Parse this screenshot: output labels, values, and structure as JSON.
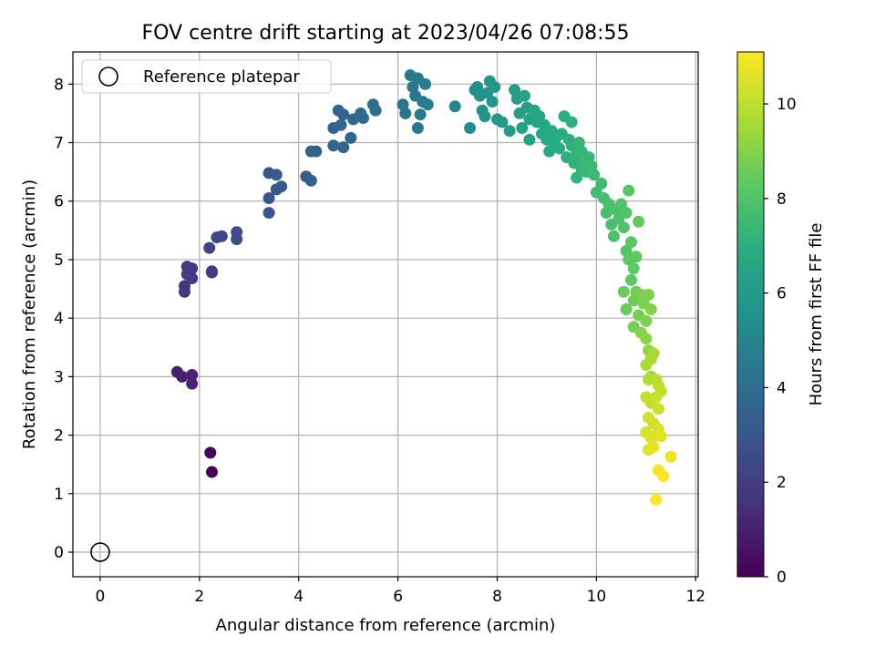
{
  "chart_data": {
    "type": "scatter",
    "title": "FOV centre drift starting at 2023/04/26 07:08:55",
    "xlabel": "Angular distance from reference (arcmin)",
    "ylabel": "Rotation from reference (arcmin)",
    "xlim": [
      -0.55,
      12.05
    ],
    "ylim": [
      -0.42,
      8.55
    ],
    "xticks": [
      0,
      2,
      4,
      6,
      8,
      10,
      12
    ],
    "yticks": [
      0,
      1,
      2,
      3,
      4,
      5,
      6,
      7,
      8
    ],
    "grid": true,
    "legend": {
      "position": "top-left",
      "entries": [
        "Reference platepar"
      ]
    },
    "reference_point": {
      "x": 0,
      "y": 0
    },
    "colorbar": {
      "label": "Hours from first FF file",
      "colormap": "viridis",
      "range": [
        0,
        11.1
      ],
      "ticks": [
        0,
        2,
        4,
        6,
        8,
        10
      ]
    },
    "points": [
      {
        "x": 2.25,
        "y": 1.37,
        "h": 0.1
      },
      {
        "x": 2.22,
        "y": 1.7,
        "h": 0.2
      },
      {
        "x": 1.55,
        "y": 3.08,
        "h": 0.9
      },
      {
        "x": 1.65,
        "y": 3.0,
        "h": 1.0
      },
      {
        "x": 1.85,
        "y": 3.03,
        "h": 1.1
      },
      {
        "x": 1.85,
        "y": 2.88,
        "h": 1.1
      },
      {
        "x": 1.7,
        "y": 4.45,
        "h": 1.8
      },
      {
        "x": 1.7,
        "y": 4.55,
        "h": 1.8
      },
      {
        "x": 1.75,
        "y": 4.75,
        "h": 1.9
      },
      {
        "x": 1.75,
        "y": 4.88,
        "h": 1.9
      },
      {
        "x": 1.85,
        "y": 4.85,
        "h": 1.9
      },
      {
        "x": 1.85,
        "y": 4.68,
        "h": 2.0
      },
      {
        "x": 2.25,
        "y": 4.78,
        "h": 2.0
      },
      {
        "x": 2.25,
        "y": 4.8,
        "h": 2.0
      },
      {
        "x": 2.2,
        "y": 5.2,
        "h": 2.2
      },
      {
        "x": 2.35,
        "y": 5.38,
        "h": 2.3
      },
      {
        "x": 2.45,
        "y": 5.4,
        "h": 2.3
      },
      {
        "x": 2.75,
        "y": 5.35,
        "h": 2.5
      },
      {
        "x": 2.75,
        "y": 5.47,
        "h": 2.5
      },
      {
        "x": 3.4,
        "y": 5.8,
        "h": 2.9
      },
      {
        "x": 3.4,
        "y": 6.05,
        "h": 2.9
      },
      {
        "x": 3.4,
        "y": 6.48,
        "h": 3.0
      },
      {
        "x": 3.55,
        "y": 6.45,
        "h": 3.1
      },
      {
        "x": 3.55,
        "y": 6.2,
        "h": 3.1
      },
      {
        "x": 3.65,
        "y": 6.25,
        "h": 3.1
      },
      {
        "x": 4.15,
        "y": 6.42,
        "h": 3.3
      },
      {
        "x": 4.25,
        "y": 6.35,
        "h": 3.4
      },
      {
        "x": 4.25,
        "y": 6.85,
        "h": 3.4
      },
      {
        "x": 4.35,
        "y": 6.85,
        "h": 3.4
      },
      {
        "x": 4.7,
        "y": 7.25,
        "h": 3.5
      },
      {
        "x": 4.7,
        "y": 6.95,
        "h": 3.5
      },
      {
        "x": 4.8,
        "y": 7.55,
        "h": 3.6
      },
      {
        "x": 4.85,
        "y": 7.3,
        "h": 3.6
      },
      {
        "x": 4.9,
        "y": 7.48,
        "h": 3.6
      },
      {
        "x": 4.9,
        "y": 6.92,
        "h": 3.6
      },
      {
        "x": 5.05,
        "y": 7.08,
        "h": 3.7
      },
      {
        "x": 5.1,
        "y": 7.4,
        "h": 3.7
      },
      {
        "x": 5.25,
        "y": 7.5,
        "h": 3.8
      },
      {
        "x": 5.3,
        "y": 7.42,
        "h": 3.8
      },
      {
        "x": 5.5,
        "y": 7.65,
        "h": 3.9
      },
      {
        "x": 5.55,
        "y": 7.55,
        "h": 3.9
      },
      {
        "x": 6.1,
        "y": 7.65,
        "h": 4.3
      },
      {
        "x": 6.15,
        "y": 7.5,
        "h": 4.3
      },
      {
        "x": 6.25,
        "y": 8.15,
        "h": 4.4
      },
      {
        "x": 6.3,
        "y": 7.95,
        "h": 4.4
      },
      {
        "x": 6.35,
        "y": 7.8,
        "h": 4.4
      },
      {
        "x": 6.4,
        "y": 8.1,
        "h": 4.5
      },
      {
        "x": 6.4,
        "y": 7.25,
        "h": 4.5
      },
      {
        "x": 6.45,
        "y": 7.48,
        "h": 4.5
      },
      {
        "x": 6.5,
        "y": 7.7,
        "h": 4.5
      },
      {
        "x": 6.55,
        "y": 8.0,
        "h": 4.6
      },
      {
        "x": 6.6,
        "y": 7.65,
        "h": 4.6
      },
      {
        "x": 7.15,
        "y": 7.62,
        "h": 5.1
      },
      {
        "x": 7.45,
        "y": 7.25,
        "h": 5.4
      },
      {
        "x": 7.55,
        "y": 7.9,
        "h": 5.5
      },
      {
        "x": 7.6,
        "y": 7.95,
        "h": 5.5
      },
      {
        "x": 7.65,
        "y": 7.8,
        "h": 5.6
      },
      {
        "x": 7.7,
        "y": 7.55,
        "h": 5.6
      },
      {
        "x": 7.75,
        "y": 7.45,
        "h": 5.7
      },
      {
        "x": 7.8,
        "y": 7.85,
        "h": 5.7
      },
      {
        "x": 7.85,
        "y": 8.05,
        "h": 5.8
      },
      {
        "x": 7.9,
        "y": 7.7,
        "h": 5.8
      },
      {
        "x": 7.95,
        "y": 7.95,
        "h": 5.9
      },
      {
        "x": 8.0,
        "y": 7.4,
        "h": 5.9
      },
      {
        "x": 8.1,
        "y": 7.35,
        "h": 6.0
      },
      {
        "x": 8.25,
        "y": 7.2,
        "h": 6.1
      },
      {
        "x": 8.35,
        "y": 7.9,
        "h": 6.2
      },
      {
        "x": 8.4,
        "y": 7.75,
        "h": 6.2
      },
      {
        "x": 8.45,
        "y": 7.5,
        "h": 6.2
      },
      {
        "x": 8.5,
        "y": 7.25,
        "h": 6.3
      },
      {
        "x": 8.55,
        "y": 7.8,
        "h": 6.3
      },
      {
        "x": 8.6,
        "y": 7.6,
        "h": 6.3
      },
      {
        "x": 8.65,
        "y": 7.4,
        "h": 6.4
      },
      {
        "x": 8.65,
        "y": 7.05,
        "h": 6.4
      },
      {
        "x": 8.75,
        "y": 7.55,
        "h": 6.5
      },
      {
        "x": 8.8,
        "y": 7.35,
        "h": 6.5
      },
      {
        "x": 8.85,
        "y": 7.45,
        "h": 6.6
      },
      {
        "x": 8.9,
        "y": 7.15,
        "h": 6.6
      },
      {
        "x": 8.95,
        "y": 7.3,
        "h": 6.6
      },
      {
        "x": 9.0,
        "y": 7.05,
        "h": 6.7
      },
      {
        "x": 9.05,
        "y": 6.85,
        "h": 6.7
      },
      {
        "x": 9.1,
        "y": 7.2,
        "h": 6.8
      },
      {
        "x": 9.15,
        "y": 7.0,
        "h": 6.8
      },
      {
        "x": 9.2,
        "y": 7.1,
        "h": 6.8
      },
      {
        "x": 9.25,
        "y": 6.9,
        "h": 6.9
      },
      {
        "x": 9.3,
        "y": 7.15,
        "h": 6.9
      },
      {
        "x": 9.35,
        "y": 7.45,
        "h": 7.0
      },
      {
        "x": 9.4,
        "y": 6.75,
        "h": 7.0
      },
      {
        "x": 9.45,
        "y": 7.05,
        "h": 7.0
      },
      {
        "x": 9.5,
        "y": 6.95,
        "h": 7.1
      },
      {
        "x": 9.5,
        "y": 7.35,
        "h": 7.1
      },
      {
        "x": 9.55,
        "y": 6.65,
        "h": 7.2
      },
      {
        "x": 9.6,
        "y": 6.8,
        "h": 7.2
      },
      {
        "x": 9.6,
        "y": 6.4,
        "h": 7.2
      },
      {
        "x": 9.65,
        "y": 7.0,
        "h": 7.3
      },
      {
        "x": 9.7,
        "y": 6.55,
        "h": 7.3
      },
      {
        "x": 9.7,
        "y": 6.85,
        "h": 7.3
      },
      {
        "x": 9.75,
        "y": 6.7,
        "h": 7.4
      },
      {
        "x": 9.8,
        "y": 6.5,
        "h": 7.4
      },
      {
        "x": 9.85,
        "y": 6.75,
        "h": 7.4
      },
      {
        "x": 9.9,
        "y": 6.6,
        "h": 7.5
      },
      {
        "x": 9.95,
        "y": 6.45,
        "h": 7.5
      },
      {
        "x": 10.0,
        "y": 6.15,
        "h": 7.6
      },
      {
        "x": 10.1,
        "y": 6.3,
        "h": 7.6
      },
      {
        "x": 10.15,
        "y": 6.05,
        "h": 7.7
      },
      {
        "x": 10.2,
        "y": 5.8,
        "h": 7.7
      },
      {
        "x": 10.25,
        "y": 5.95,
        "h": 7.8
      },
      {
        "x": 10.3,
        "y": 5.6,
        "h": 7.8
      },
      {
        "x": 10.35,
        "y": 5.4,
        "h": 7.9
      },
      {
        "x": 10.4,
        "y": 5.85,
        "h": 7.9
      },
      {
        "x": 10.45,
        "y": 5.7,
        "h": 7.9
      },
      {
        "x": 10.5,
        "y": 5.95,
        "h": 8.0
      },
      {
        "x": 10.55,
        "y": 5.55,
        "h": 8.0
      },
      {
        "x": 10.6,
        "y": 5.8,
        "h": 8.0
      },
      {
        "x": 10.65,
        "y": 6.18,
        "h": 8.1
      },
      {
        "x": 10.6,
        "y": 5.15,
        "h": 8.1
      },
      {
        "x": 10.65,
        "y": 5.0,
        "h": 8.2
      },
      {
        "x": 10.7,
        "y": 5.3,
        "h": 8.2
      },
      {
        "x": 10.75,
        "y": 4.85,
        "h": 8.3
      },
      {
        "x": 10.7,
        "y": 4.65,
        "h": 8.3
      },
      {
        "x": 10.8,
        "y": 5.05,
        "h": 8.3
      },
      {
        "x": 10.85,
        "y": 5.65,
        "h": 8.4
      },
      {
        "x": 10.55,
        "y": 4.45,
        "h": 8.5
      },
      {
        "x": 10.6,
        "y": 4.15,
        "h": 8.5
      },
      {
        "x": 10.75,
        "y": 4.3,
        "h": 8.6
      },
      {
        "x": 10.8,
        "y": 4.45,
        "h": 8.6
      },
      {
        "x": 10.85,
        "y": 4.05,
        "h": 8.7
      },
      {
        "x": 10.75,
        "y": 3.85,
        "h": 8.7
      },
      {
        "x": 10.9,
        "y": 4.4,
        "h": 8.8
      },
      {
        "x": 10.95,
        "y": 4.25,
        "h": 8.8
      },
      {
        "x": 11.0,
        "y": 3.95,
        "h": 8.9
      },
      {
        "x": 11.05,
        "y": 4.4,
        "h": 8.9
      },
      {
        "x": 11.1,
        "y": 4.15,
        "h": 9.0
      },
      {
        "x": 10.9,
        "y": 3.75,
        "h": 9.0
      },
      {
        "x": 11.0,
        "y": 3.65,
        "h": 9.1
      },
      {
        "x": 11.05,
        "y": 3.45,
        "h": 9.2
      },
      {
        "x": 11.1,
        "y": 3.0,
        "h": 9.4
      },
      {
        "x": 11.15,
        "y": 3.4,
        "h": 9.5
      },
      {
        "x": 11.0,
        "y": 3.2,
        "h": 9.6
      },
      {
        "x": 11.1,
        "y": 3.3,
        "h": 9.6
      },
      {
        "x": 11.05,
        "y": 2.95,
        "h": 9.8
      },
      {
        "x": 11.2,
        "y": 2.95,
        "h": 9.9
      },
      {
        "x": 11.25,
        "y": 2.85,
        "h": 10.0
      },
      {
        "x": 11.3,
        "y": 2.75,
        "h": 10.0
      },
      {
        "x": 11.0,
        "y": 2.65,
        "h": 10.1
      },
      {
        "x": 11.1,
        "y": 2.55,
        "h": 10.1
      },
      {
        "x": 11.2,
        "y": 2.65,
        "h": 10.2
      },
      {
        "x": 11.25,
        "y": 2.45,
        "h": 10.2
      },
      {
        "x": 11.05,
        "y": 2.3,
        "h": 10.3
      },
      {
        "x": 11.15,
        "y": 2.2,
        "h": 10.3
      },
      {
        "x": 11.25,
        "y": 2.1,
        "h": 10.4
      },
      {
        "x": 11.0,
        "y": 2.05,
        "h": 10.4
      },
      {
        "x": 11.1,
        "y": 1.95,
        "h": 10.5
      },
      {
        "x": 11.2,
        "y": 2.0,
        "h": 10.5
      },
      {
        "x": 11.3,
        "y": 1.98,
        "h": 10.6
      },
      {
        "x": 11.05,
        "y": 1.75,
        "h": 10.6
      },
      {
        "x": 11.15,
        "y": 1.8,
        "h": 10.7
      },
      {
        "x": 11.5,
        "y": 1.63,
        "h": 10.8
      },
      {
        "x": 11.25,
        "y": 1.4,
        "h": 10.9
      },
      {
        "x": 11.35,
        "y": 1.3,
        "h": 11.0
      },
      {
        "x": 11.2,
        "y": 0.9,
        "h": 11.1
      }
    ]
  }
}
